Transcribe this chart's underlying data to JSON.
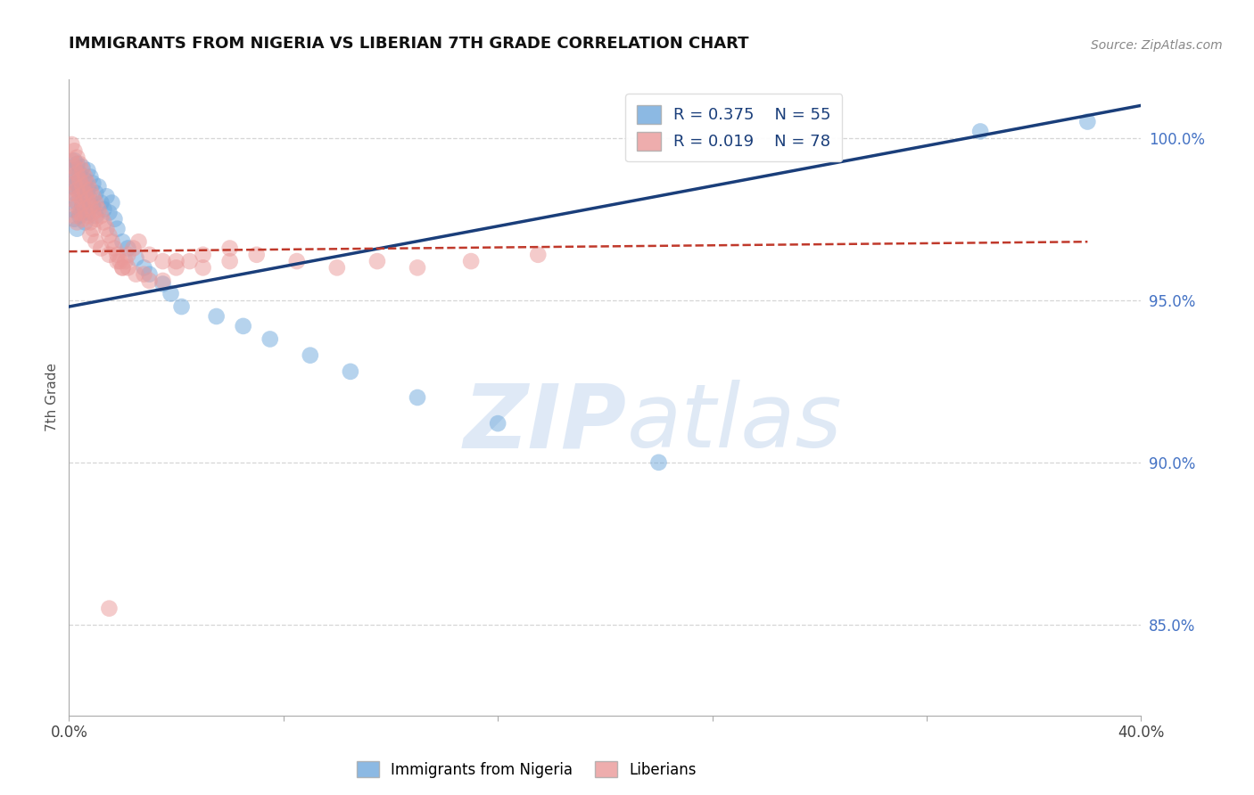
{
  "title": "IMMIGRANTS FROM NIGERIA VS LIBERIAN 7TH GRADE CORRELATION CHART",
  "source": "Source: ZipAtlas.com",
  "ylabel": "7th Grade",
  "ylabel_right_ticks": [
    "100.0%",
    "95.0%",
    "90.0%",
    "85.0%"
  ],
  "ylabel_right_vals": [
    1.0,
    0.95,
    0.9,
    0.85
  ],
  "xmin": 0.0,
  "xmax": 0.4,
  "ymin": 0.822,
  "ymax": 1.018,
  "legend_blue_r": "R = 0.375",
  "legend_blue_n": "N = 55",
  "legend_pink_r": "R = 0.019",
  "legend_pink_n": "N = 78",
  "blue_scatter_x": [
    0.001,
    0.001,
    0.001,
    0.002,
    0.002,
    0.002,
    0.002,
    0.003,
    0.003,
    0.003,
    0.003,
    0.004,
    0.004,
    0.004,
    0.005,
    0.005,
    0.005,
    0.006,
    0.006,
    0.006,
    0.007,
    0.007,
    0.007,
    0.008,
    0.008,
    0.009,
    0.009,
    0.01,
    0.01,
    0.011,
    0.012,
    0.013,
    0.014,
    0.015,
    0.016,
    0.017,
    0.018,
    0.02,
    0.022,
    0.025,
    0.028,
    0.03,
    0.035,
    0.038,
    0.042,
    0.055,
    0.065,
    0.075,
    0.09,
    0.105,
    0.13,
    0.16,
    0.22,
    0.34,
    0.38
  ],
  "blue_scatter_y": [
    0.99,
    0.985,
    0.978,
    0.993,
    0.988,
    0.983,
    0.975,
    0.992,
    0.986,
    0.98,
    0.972,
    0.989,
    0.984,
    0.976,
    0.991,
    0.985,
    0.979,
    0.987,
    0.982,
    0.974,
    0.99,
    0.984,
    0.977,
    0.988,
    0.981,
    0.986,
    0.979,
    0.983,
    0.976,
    0.985,
    0.98,
    0.978,
    0.982,
    0.977,
    0.98,
    0.975,
    0.972,
    0.968,
    0.966,
    0.963,
    0.96,
    0.958,
    0.955,
    0.952,
    0.948,
    0.945,
    0.942,
    0.938,
    0.933,
    0.928,
    0.92,
    0.912,
    0.9,
    1.002,
    1.005
  ],
  "pink_scatter_x": [
    0.001,
    0.001,
    0.001,
    0.001,
    0.002,
    0.002,
    0.002,
    0.002,
    0.002,
    0.003,
    0.003,
    0.003,
    0.003,
    0.003,
    0.004,
    0.004,
    0.004,
    0.004,
    0.005,
    0.005,
    0.005,
    0.005,
    0.006,
    0.006,
    0.006,
    0.007,
    0.007,
    0.007,
    0.008,
    0.008,
    0.008,
    0.009,
    0.009,
    0.009,
    0.01,
    0.01,
    0.011,
    0.012,
    0.013,
    0.014,
    0.015,
    0.016,
    0.017,
    0.018,
    0.019,
    0.02,
    0.021,
    0.022,
    0.024,
    0.026,
    0.03,
    0.035,
    0.04,
    0.045,
    0.05,
    0.06,
    0.07,
    0.085,
    0.1,
    0.115,
    0.13,
    0.15,
    0.175,
    0.015,
    0.02,
    0.025,
    0.03,
    0.04,
    0.05,
    0.06,
    0.008,
    0.01,
    0.012,
    0.015,
    0.018,
    0.022,
    0.028,
    0.035
  ],
  "pink_scatter_y": [
    0.998,
    0.993,
    0.988,
    0.983,
    0.996,
    0.991,
    0.986,
    0.981,
    0.976,
    0.994,
    0.989,
    0.984,
    0.979,
    0.974,
    0.992,
    0.987,
    0.982,
    0.977,
    0.99,
    0.985,
    0.98,
    0.975,
    0.988,
    0.983,
    0.978,
    0.986,
    0.981,
    0.976,
    0.984,
    0.979,
    0.974,
    0.982,
    0.977,
    0.972,
    0.98,
    0.975,
    0.978,
    0.976,
    0.974,
    0.972,
    0.97,
    0.968,
    0.966,
    0.964,
    0.962,
    0.96,
    0.962,
    0.964,
    0.966,
    0.968,
    0.964,
    0.962,
    0.96,
    0.962,
    0.964,
    0.966,
    0.964,
    0.962,
    0.96,
    0.962,
    0.96,
    0.962,
    0.964,
    0.855,
    0.96,
    0.958,
    0.956,
    0.962,
    0.96,
    0.962,
    0.97,
    0.968,
    0.966,
    0.964,
    0.962,
    0.96,
    0.958,
    0.956
  ],
  "blue_line_x": [
    0.0,
    0.4
  ],
  "blue_line_y": [
    0.948,
    1.01
  ],
  "pink_line_x": [
    0.0,
    0.38
  ],
  "pink_line_y": [
    0.965,
    0.968
  ],
  "watermark_zip": "ZIP",
  "watermark_atlas": "atlas",
  "background_color": "#ffffff",
  "blue_color": "#6fa8dc",
  "pink_color": "#ea9999",
  "blue_line_color": "#1a3e7a",
  "pink_line_color": "#c0392b",
  "grid_color": "#cccccc"
}
